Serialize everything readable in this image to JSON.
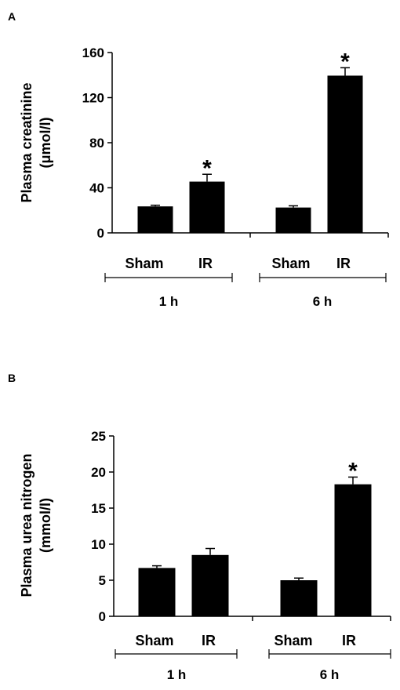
{
  "chart_data": [
    {
      "type": "bar",
      "panel_label": "A",
      "ylabel_line1": "Plasma creatinine",
      "ylabel_line2": "(μmol/l)",
      "ylim": [
        0,
        160
      ],
      "yticks": [
        "0",
        "40",
        "80",
        "120",
        "160"
      ],
      "groups": [
        {
          "label": "1 h",
          "categories": [
            "Sham",
            "IR"
          ]
        },
        {
          "label": "6 h",
          "categories": [
            "Sham",
            "IR"
          ]
        }
      ],
      "values": [
        23.5,
        45.5,
        22.5,
        139.5
      ],
      "errors": [
        1.0,
        6.5,
        1.5,
        7.0
      ],
      "significance": [
        "",
        "*",
        "",
        "*"
      ]
    },
    {
      "type": "bar",
      "panel_label": "B",
      "ylabel_line1": "Plasma urea nitrogen",
      "ylabel_line2": "(mmol/l)",
      "ylim": [
        0,
        25
      ],
      "yticks": [
        "0",
        "5",
        "10",
        "15",
        "20",
        "25"
      ],
      "groups": [
        {
          "label": "1 h",
          "categories": [
            "Sham",
            "IR"
          ]
        },
        {
          "label": "6 h",
          "categories": [
            "Sham",
            "IR"
          ]
        }
      ],
      "values": [
        6.7,
        8.5,
        5.0,
        18.3
      ],
      "errors": [
        0.3,
        0.9,
        0.3,
        1.0
      ],
      "significance": [
        "",
        "",
        "",
        "*"
      ]
    }
  ]
}
